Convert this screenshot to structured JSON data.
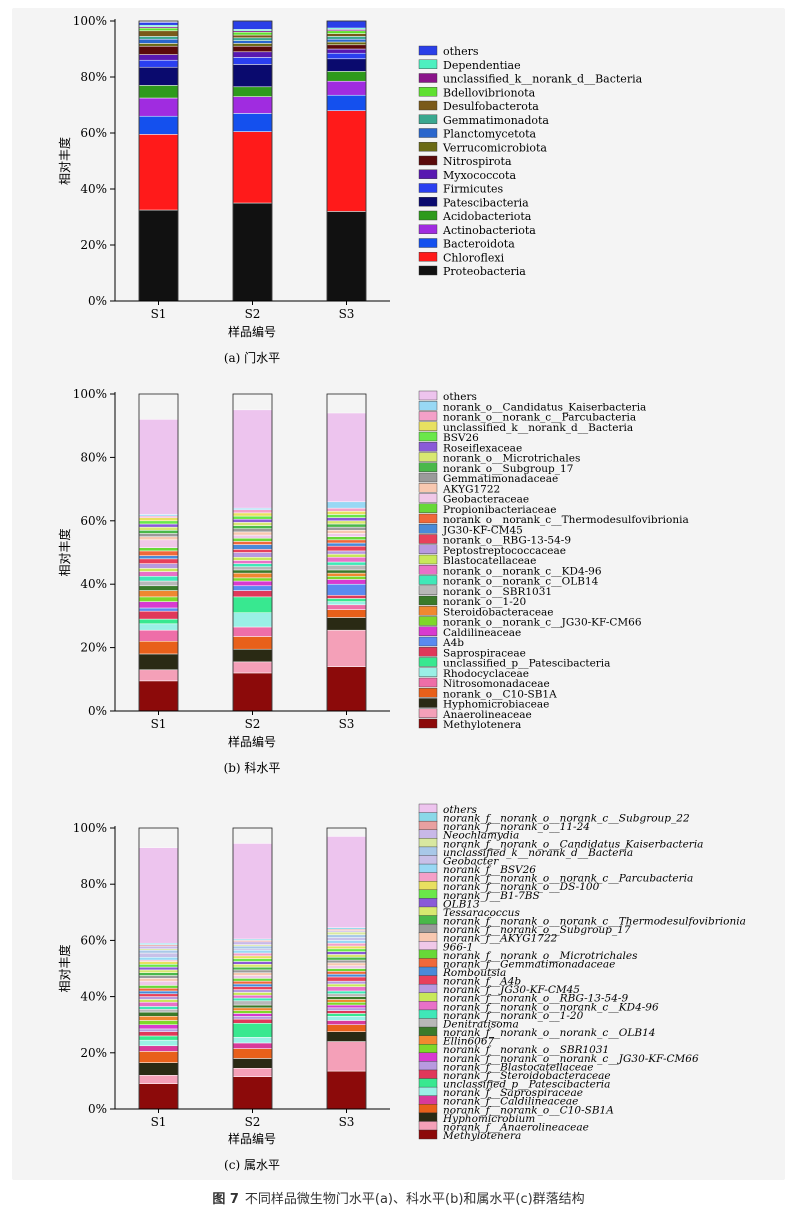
{
  "figure_caption": {
    "label": "图 7",
    "text": "不同样品微生物门水平(a)、科水平(b)和属水平(c)群落结构"
  },
  "chart_data": [
    {
      "type": "bar",
      "stacked": true,
      "subtitle": "(a) 门水平",
      "xlabel": "样品编号",
      "ylabel": "相对丰度",
      "categories": [
        "S1",
        "S2",
        "S3"
      ],
      "yticks": [
        "0%",
        "20%",
        "40%",
        "60%",
        "80%",
        "100%"
      ],
      "ylim": [
        0,
        100
      ],
      "legend_italic": false,
      "series": [
        {
          "name": "Proteobacteria",
          "color": "#111111",
          "values": [
            32.5,
            35.0,
            32.0
          ]
        },
        {
          "name": "Chloroflexi",
          "color": "#ff1a1a",
          "values": [
            27.0,
            25.5,
            36.0
          ]
        },
        {
          "name": "Bacteroidota",
          "color": "#1450ee",
          "values": [
            6.5,
            6.5,
            5.5
          ]
        },
        {
          "name": "Actinobacteriota",
          "color": "#a02ce0",
          "values": [
            6.5,
            6.0,
            5.0
          ]
        },
        {
          "name": "Acidobacteriota",
          "color": "#2e9a1c",
          "values": [
            4.5,
            3.5,
            3.5
          ]
        },
        {
          "name": "Patescibacteria",
          "color": "#0a0a6e",
          "values": [
            6.5,
            8.0,
            4.5
          ]
        },
        {
          "name": "Firmicutes",
          "color": "#2a3ff0",
          "values": [
            2.5,
            2.5,
            2.0
          ]
        },
        {
          "name": "Myxococcota",
          "color": "#5818b0",
          "values": [
            2.0,
            2.0,
            1.5
          ]
        },
        {
          "name": "Nitrospirota",
          "color": "#5a0a0a",
          "values": [
            3.0,
            2.0,
            1.5
          ]
        },
        {
          "name": "Verrucomicrobiota",
          "color": "#6a6a14",
          "values": [
            1.0,
            1.0,
            1.0
          ]
        },
        {
          "name": "Planctomycetota",
          "color": "#2a66cc",
          "values": [
            1.5,
            1.0,
            1.0
          ]
        },
        {
          "name": "Gemmatimonadota",
          "color": "#3aa890",
          "values": [
            1.0,
            1.0,
            1.0
          ]
        },
        {
          "name": "Desulfobacterota",
          "color": "#7a5a1a",
          "values": [
            2.0,
            1.0,
            1.0
          ]
        },
        {
          "name": "Bdellovibrionota",
          "color": "#5fe030",
          "values": [
            1.0,
            1.0,
            1.0
          ]
        },
        {
          "name": "unclassified_k__norank_d__Bacteria",
          "color": "#8a148a",
          "values": [
            0.5,
            0.5,
            0.5
          ]
        },
        {
          "name": "Dependentiae",
          "color": "#4ef0c0",
          "values": [
            0.5,
            0.5,
            0.5
          ]
        },
        {
          "name": "others",
          "color": "#2a3fe8",
          "values": [
            1.0,
            3.0,
            2.5
          ]
        }
      ]
    },
    {
      "type": "bar",
      "stacked": true,
      "subtitle": "(b) 科水平",
      "xlabel": "样品编号",
      "ylabel": "相对丰度",
      "categories": [
        "S1",
        "S2",
        "S3"
      ],
      "yticks": [
        "0%",
        "20%",
        "40%",
        "60%",
        "80%",
        "100%"
      ],
      "ylim": [
        0,
        100
      ],
      "legend_italic": false,
      "series": [
        {
          "name": "Methylotenera",
          "color": "#8c0a0a",
          "values": [
            9.5,
            12.0,
            14.0
          ]
        },
        {
          "name": "Anaerolineaceae",
          "color": "#f4a0b8",
          "values": [
            3.5,
            3.5,
            11.5
          ]
        },
        {
          "name": "Hyphomicrobiaceae",
          "color": "#2a2a14",
          "values": [
            5.0,
            4.0,
            4.0
          ]
        },
        {
          "name": "norank_o__C10-SB1A",
          "color": "#e8601a",
          "values": [
            4.0,
            4.0,
            2.5
          ]
        },
        {
          "name": "Nitrosomonadaceae",
          "color": "#ee6ea8",
          "values": [
            3.5,
            3.0,
            1.5
          ]
        },
        {
          "name": "Rhodocyclaceae",
          "color": "#9af0e6",
          "values": [
            2.0,
            4.5,
            1.0
          ]
        },
        {
          "name": "unclassified_p__Patescibacteria",
          "color": "#38e890",
          "values": [
            1.5,
            5.0,
            1.0
          ]
        },
        {
          "name": "Saprospiraceae",
          "color": "#e0385a",
          "values": [
            2.5,
            2.0,
            1.0
          ]
        },
        {
          "name": "A4b",
          "color": "#5a8af0",
          "values": [
            1.0,
            1.5,
            3.5
          ]
        },
        {
          "name": "Caldilineaceae",
          "color": "#d83ad0",
          "values": [
            2.0,
            1.5,
            1.5
          ]
        },
        {
          "name": "norank_o__norank_c__JG30-KF-CM66",
          "color": "#7ed82a",
          "values": [
            1.5,
            1.0,
            1.0
          ]
        },
        {
          "name": "Steroidobacteraceae",
          "color": "#f08830",
          "values": [
            2.0,
            1.5,
            1.0
          ]
        },
        {
          "name": "norank_o__1-20",
          "color": "#3a7a2a",
          "values": [
            1.5,
            1.0,
            1.0
          ]
        },
        {
          "name": "norank_o__SBR1031",
          "color": "#b8b8b8",
          "values": [
            1.5,
            1.0,
            1.5
          ]
        },
        {
          "name": "norank_o__norank_c__OLB14",
          "color": "#40e8b8",
          "values": [
            1.5,
            1.0,
            1.0
          ]
        },
        {
          "name": "norank_o__norank_c__KD4-96",
          "color": "#e870c8",
          "values": [
            1.5,
            1.0,
            1.5
          ]
        },
        {
          "name": "Blastocatellaceae",
          "color": "#c8e85a",
          "values": [
            1.0,
            1.0,
            1.0
          ]
        },
        {
          "name": "Peptostreptococcaceae",
          "color": "#b89ae0",
          "values": [
            1.5,
            1.5,
            1.0
          ]
        },
        {
          "name": "norank_o__RBG-13-54-9",
          "color": "#e8405a",
          "values": [
            1.5,
            1.0,
            1.5
          ]
        },
        {
          "name": "JG30-KF-CM45",
          "color": "#4a8ad8",
          "values": [
            1.0,
            1.5,
            1.0
          ]
        },
        {
          "name": "norank_o__norank_c__Thermodesulfovibrionia",
          "color": "#f0683a",
          "values": [
            1.5,
            1.0,
            1.0
          ]
        },
        {
          "name": "Propionibacteriaceae",
          "color": "#68d838",
          "values": [
            1.0,
            1.0,
            1.0
          ]
        },
        {
          "name": "Geobacteraceae",
          "color": "#f0c8e8",
          "values": [
            2.5,
            1.0,
            1.0
          ]
        },
        {
          "name": "AKYG1722",
          "color": "#f8c8b0",
          "values": [
            1.0,
            1.0,
            1.0
          ]
        },
        {
          "name": "Gemmatimonadaceae",
          "color": "#9a9a9a",
          "values": [
            1.0,
            1.0,
            1.0
          ]
        },
        {
          "name": "norank_o__Subgroup_17",
          "color": "#4ab84a",
          "values": [
            1.0,
            1.0,
            1.0
          ]
        },
        {
          "name": "norank_o__Microtrichales",
          "color": "#d8e870",
          "values": [
            1.0,
            1.0,
            1.0
          ]
        },
        {
          "name": "Roseiflexaceae",
          "color": "#8a5ad8",
          "values": [
            1.0,
            1.0,
            1.0
          ]
        },
        {
          "name": "BSV26",
          "color": "#6ae84a",
          "values": [
            1.0,
            1.0,
            1.0
          ]
        },
        {
          "name": "unclassified_k__norank_d__Bacteria",
          "color": "#e8e060",
          "values": [
            1.0,
            1.0,
            1.0
          ]
        },
        {
          "name": "norank_o__norank_c__Parcubacteria",
          "color": "#f4a0c8",
          "values": [
            0.5,
            1.0,
            1.0
          ]
        },
        {
          "name": "norank_o__Candidatus_Kaiserbacteria",
          "color": "#98d8f4",
          "values": [
            0.5,
            0.5,
            2.0
          ]
        },
        {
          "name": "others",
          "color": "#edc4ee",
          "values": [
            30.0,
            31.0,
            28.0
          ]
        }
      ]
    },
    {
      "type": "bar",
      "stacked": true,
      "subtitle": "(c) 属水平",
      "xlabel": "样品编号",
      "ylabel": "相对丰度",
      "categories": [
        "S1",
        "S2",
        "S3"
      ],
      "yticks": [
        "0%",
        "20%",
        "40%",
        "60%",
        "80%",
        "100%"
      ],
      "ylim": [
        0,
        100
      ],
      "legend_italic": true,
      "series": [
        {
          "name": "Methylotenera",
          "color": "#8c0a0a",
          "values": [
            9.0,
            11.5,
            13.5
          ]
        },
        {
          "name": "norank_f__Anaerolineaceae",
          "color": "#f4a0b8",
          "values": [
            3.0,
            3.0,
            10.5
          ]
        },
        {
          "name": "Hyphomicrobium",
          "color": "#2a2a14",
          "values": [
            4.5,
            3.5,
            3.5
          ]
        },
        {
          "name": "norank_f__norank_o__C10-SB1A",
          "color": "#e8601a",
          "values": [
            4.0,
            3.5,
            2.5
          ]
        },
        {
          "name": "norank_f__Caldilineaceae",
          "color": "#d83a9a",
          "values": [
            2.0,
            2.0,
            1.5
          ]
        },
        {
          "name": "norank_f__Saprospiraceae",
          "color": "#9af0e6",
          "values": [
            2.0,
            2.0,
            1.5
          ]
        },
        {
          "name": "unclassified_p__Patescibacteria",
          "color": "#38e890",
          "values": [
            1.5,
            5.0,
            1.0
          ]
        },
        {
          "name": "norank_f__Steroidobacteraceae",
          "color": "#e0385a",
          "values": [
            1.5,
            1.5,
            1.0
          ]
        },
        {
          "name": "norank_f__Blastocatellaceae",
          "color": "#b89ae0",
          "values": [
            1.0,
            1.0,
            1.0
          ]
        },
        {
          "name": "norank_f__norank_o__norank_c__JG30-KF-CM66",
          "color": "#d83ad0",
          "values": [
            1.5,
            1.0,
            1.0
          ]
        },
        {
          "name": "norank_f__norank_o__SBR1031",
          "color": "#7ed82a",
          "values": [
            1.5,
            1.0,
            1.0
          ]
        },
        {
          "name": "Ellin6067",
          "color": "#f08830",
          "values": [
            1.5,
            1.0,
            1.0
          ]
        },
        {
          "name": "norank_f__norank_o__norank_c__OLB14",
          "color": "#3a7a2a",
          "values": [
            1.5,
            1.0,
            1.0
          ]
        },
        {
          "name": "Denitratisoma",
          "color": "#b8b8b8",
          "values": [
            1.0,
            1.5,
            1.0
          ]
        },
        {
          "name": "norank_f__norank_o__1-20",
          "color": "#40e8b8",
          "values": [
            1.0,
            1.0,
            1.0
          ]
        },
        {
          "name": "norank_f__norank_o__norank_c__KD4-96",
          "color": "#e870c8",
          "values": [
            1.5,
            1.0,
            1.5
          ]
        },
        {
          "name": "norank_f__norank_o__RBG-13-54-9",
          "color": "#c8e85a",
          "values": [
            1.0,
            1.0,
            1.0
          ]
        },
        {
          "name": "norank_f__JG30-KF-CM45",
          "color": "#b89ae0",
          "values": [
            1.0,
            1.0,
            1.0
          ]
        },
        {
          "name": "norank_f__A4b",
          "color": "#e8405a",
          "values": [
            1.0,
            1.0,
            1.5
          ]
        },
        {
          "name": "Romboutsia",
          "color": "#4a8ad8",
          "values": [
            1.0,
            1.0,
            1.0
          ]
        },
        {
          "name": "norank_f__Gemmatimonadaceae",
          "color": "#f0683a",
          "values": [
            1.0,
            1.0,
            1.0
          ]
        },
        {
          "name": "norank_f__norank_o__Microtrichales",
          "color": "#68d838",
          "values": [
            1.0,
            1.0,
            1.0
          ]
        },
        {
          "name": "966-1",
          "color": "#f0c8e8",
          "values": [
            1.5,
            1.0,
            1.0
          ]
        },
        {
          "name": "norank_f__AKYG1722",
          "color": "#f8c8b0",
          "values": [
            1.0,
            1.0,
            1.0
          ]
        },
        {
          "name": "norank_f__norank_o__Subgroup_17",
          "color": "#9a9a9a",
          "values": [
            1.0,
            1.0,
            1.0
          ]
        },
        {
          "name": "norank_f__norank_o__norank_c__Thermodesulfovibrionia",
          "color": "#4ab84a",
          "values": [
            1.0,
            1.0,
            1.0
          ]
        },
        {
          "name": "Tessaracoccus",
          "color": "#d8e870",
          "values": [
            1.0,
            1.0,
            1.0
          ]
        },
        {
          "name": "OLB13",
          "color": "#8a5ad8",
          "values": [
            1.0,
            1.0,
            1.0
          ]
        },
        {
          "name": "norank_f__B1-7BS",
          "color": "#6ae84a",
          "values": [
            1.0,
            1.0,
            1.0
          ]
        },
        {
          "name": "norank_f__norank_o__DS-100",
          "color": "#e8e060",
          "values": [
            1.0,
            1.0,
            1.0
          ]
        },
        {
          "name": "norank_f__norank_o__norank_c__Parcubacteria",
          "color": "#f4a0c8",
          "values": [
            0.5,
            1.0,
            1.0
          ]
        },
        {
          "name": "norank_f__BSV26",
          "color": "#98d8f4",
          "values": [
            1.0,
            1.0,
            1.0
          ]
        },
        {
          "name": "Geobacter",
          "color": "#c8c0e8",
          "values": [
            1.5,
            0.5,
            1.0
          ]
        },
        {
          "name": "unclassified_k__norank_d__Bacteria",
          "color": "#a8c8e8",
          "values": [
            1.0,
            1.0,
            1.0
          ]
        },
        {
          "name": "norank_f__norank_o__Candidatus_Kaiserbacteria",
          "color": "#d8e8a0",
          "values": [
            0.5,
            0.5,
            1.0
          ]
        },
        {
          "name": "Neochlamydia",
          "color": "#c8b8e8",
          "values": [
            1.0,
            1.0,
            0.5
          ]
        },
        {
          "name": "norank_f__norank_o__11-24",
          "color": "#e8a0a0",
          "values": [
            0.5,
            0.5,
            0.5
          ]
        },
        {
          "name": "norank_f__norank_o__norank_c__Subgroup_22",
          "color": "#8ad8e8",
          "values": [
            0.5,
            0.5,
            0.5
          ]
        },
        {
          "name": "others",
          "color": "#edc4ee",
          "values": [
            34.0,
            34.0,
            32.5
          ]
        }
      ]
    }
  ]
}
